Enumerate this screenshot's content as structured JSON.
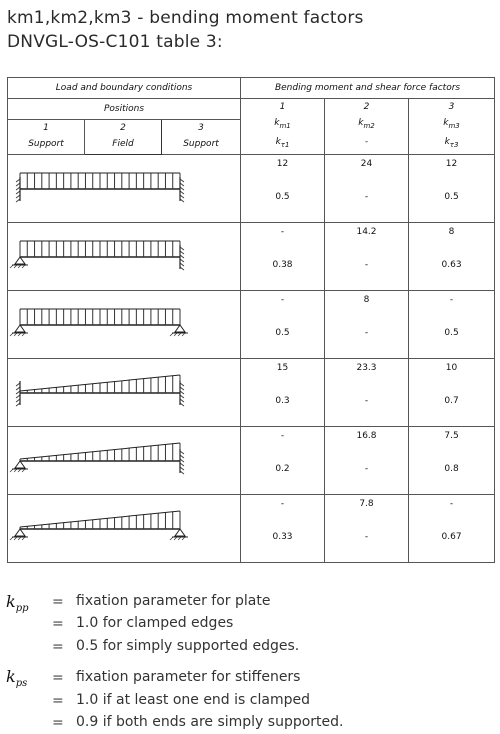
{
  "title": {
    "line1": "km1,km2,km3 - bending moment factors",
    "line2": "DNVGL-OS-C101 table 3:"
  },
  "table": {
    "header_left": "Load and boundary conditions",
    "header_right": "Bending moment and shear force factors",
    "positions_label": "Positions",
    "positions": [
      {
        "num": "1",
        "name": "Support"
      },
      {
        "num": "2",
        "name": "Field"
      },
      {
        "num": "3",
        "name": "Support"
      }
    ],
    "factor_cols": [
      {
        "num": "1",
        "km": "k",
        "km_sub": "m1",
        "kt": "k",
        "kt_sub": "τ1"
      },
      {
        "num": "2",
        "km": "k",
        "km_sub": "m2",
        "kt": "-",
        "kt_sub": ""
      },
      {
        "num": "3",
        "km": "k",
        "km_sub": "m3",
        "kt": "k",
        "kt_sub": "τ3"
      }
    ],
    "rows": [
      {
        "diagram": "uniform-load-both-clamped",
        "c1": [
          "12",
          "0.5"
        ],
        "c2": [
          "24",
          "-"
        ],
        "c3": [
          "12",
          "0.5"
        ]
      },
      {
        "diagram": "uniform-load-pinned-clamped",
        "c1": [
          "-",
          "0.38"
        ],
        "c2": [
          "14.2",
          "-"
        ],
        "c3": [
          "8",
          "0.63"
        ]
      },
      {
        "diagram": "uniform-load-both-pinned",
        "c1": [
          "-",
          "0.5"
        ],
        "c2": [
          "8",
          "-"
        ],
        "c3": [
          "-",
          "0.5"
        ]
      },
      {
        "diagram": "triangular-load-both-clamped",
        "c1": [
          "15",
          "0.3"
        ],
        "c2": [
          "23.3",
          "-"
        ],
        "c3": [
          "10",
          "0.7"
        ]
      },
      {
        "diagram": "triangular-load-pinned-clamped",
        "c1": [
          "-",
          "0.2"
        ],
        "c2": [
          "16.8",
          "-"
        ],
        "c3": [
          "7.5",
          "0.8"
        ]
      },
      {
        "diagram": "triangular-load-both-pinned",
        "c1": [
          "-",
          "0.33"
        ],
        "c2": [
          "7.8",
          "-"
        ],
        "c3": [
          "-",
          "0.67"
        ]
      }
    ]
  },
  "legend": {
    "kpp": {
      "sym": "k",
      "sub": "pp",
      "lines": [
        "fixation parameter for plate",
        "1.0 for clamped edges",
        "0.5 for simply supported edges."
      ]
    },
    "kps": {
      "sym": "k",
      "sub": "ps",
      "lines": [
        "fixation parameter for stiffeners",
        "1.0 if at least one end is clamped",
        "0.9 if both ends are simply supported."
      ]
    },
    "eq": "="
  }
}
